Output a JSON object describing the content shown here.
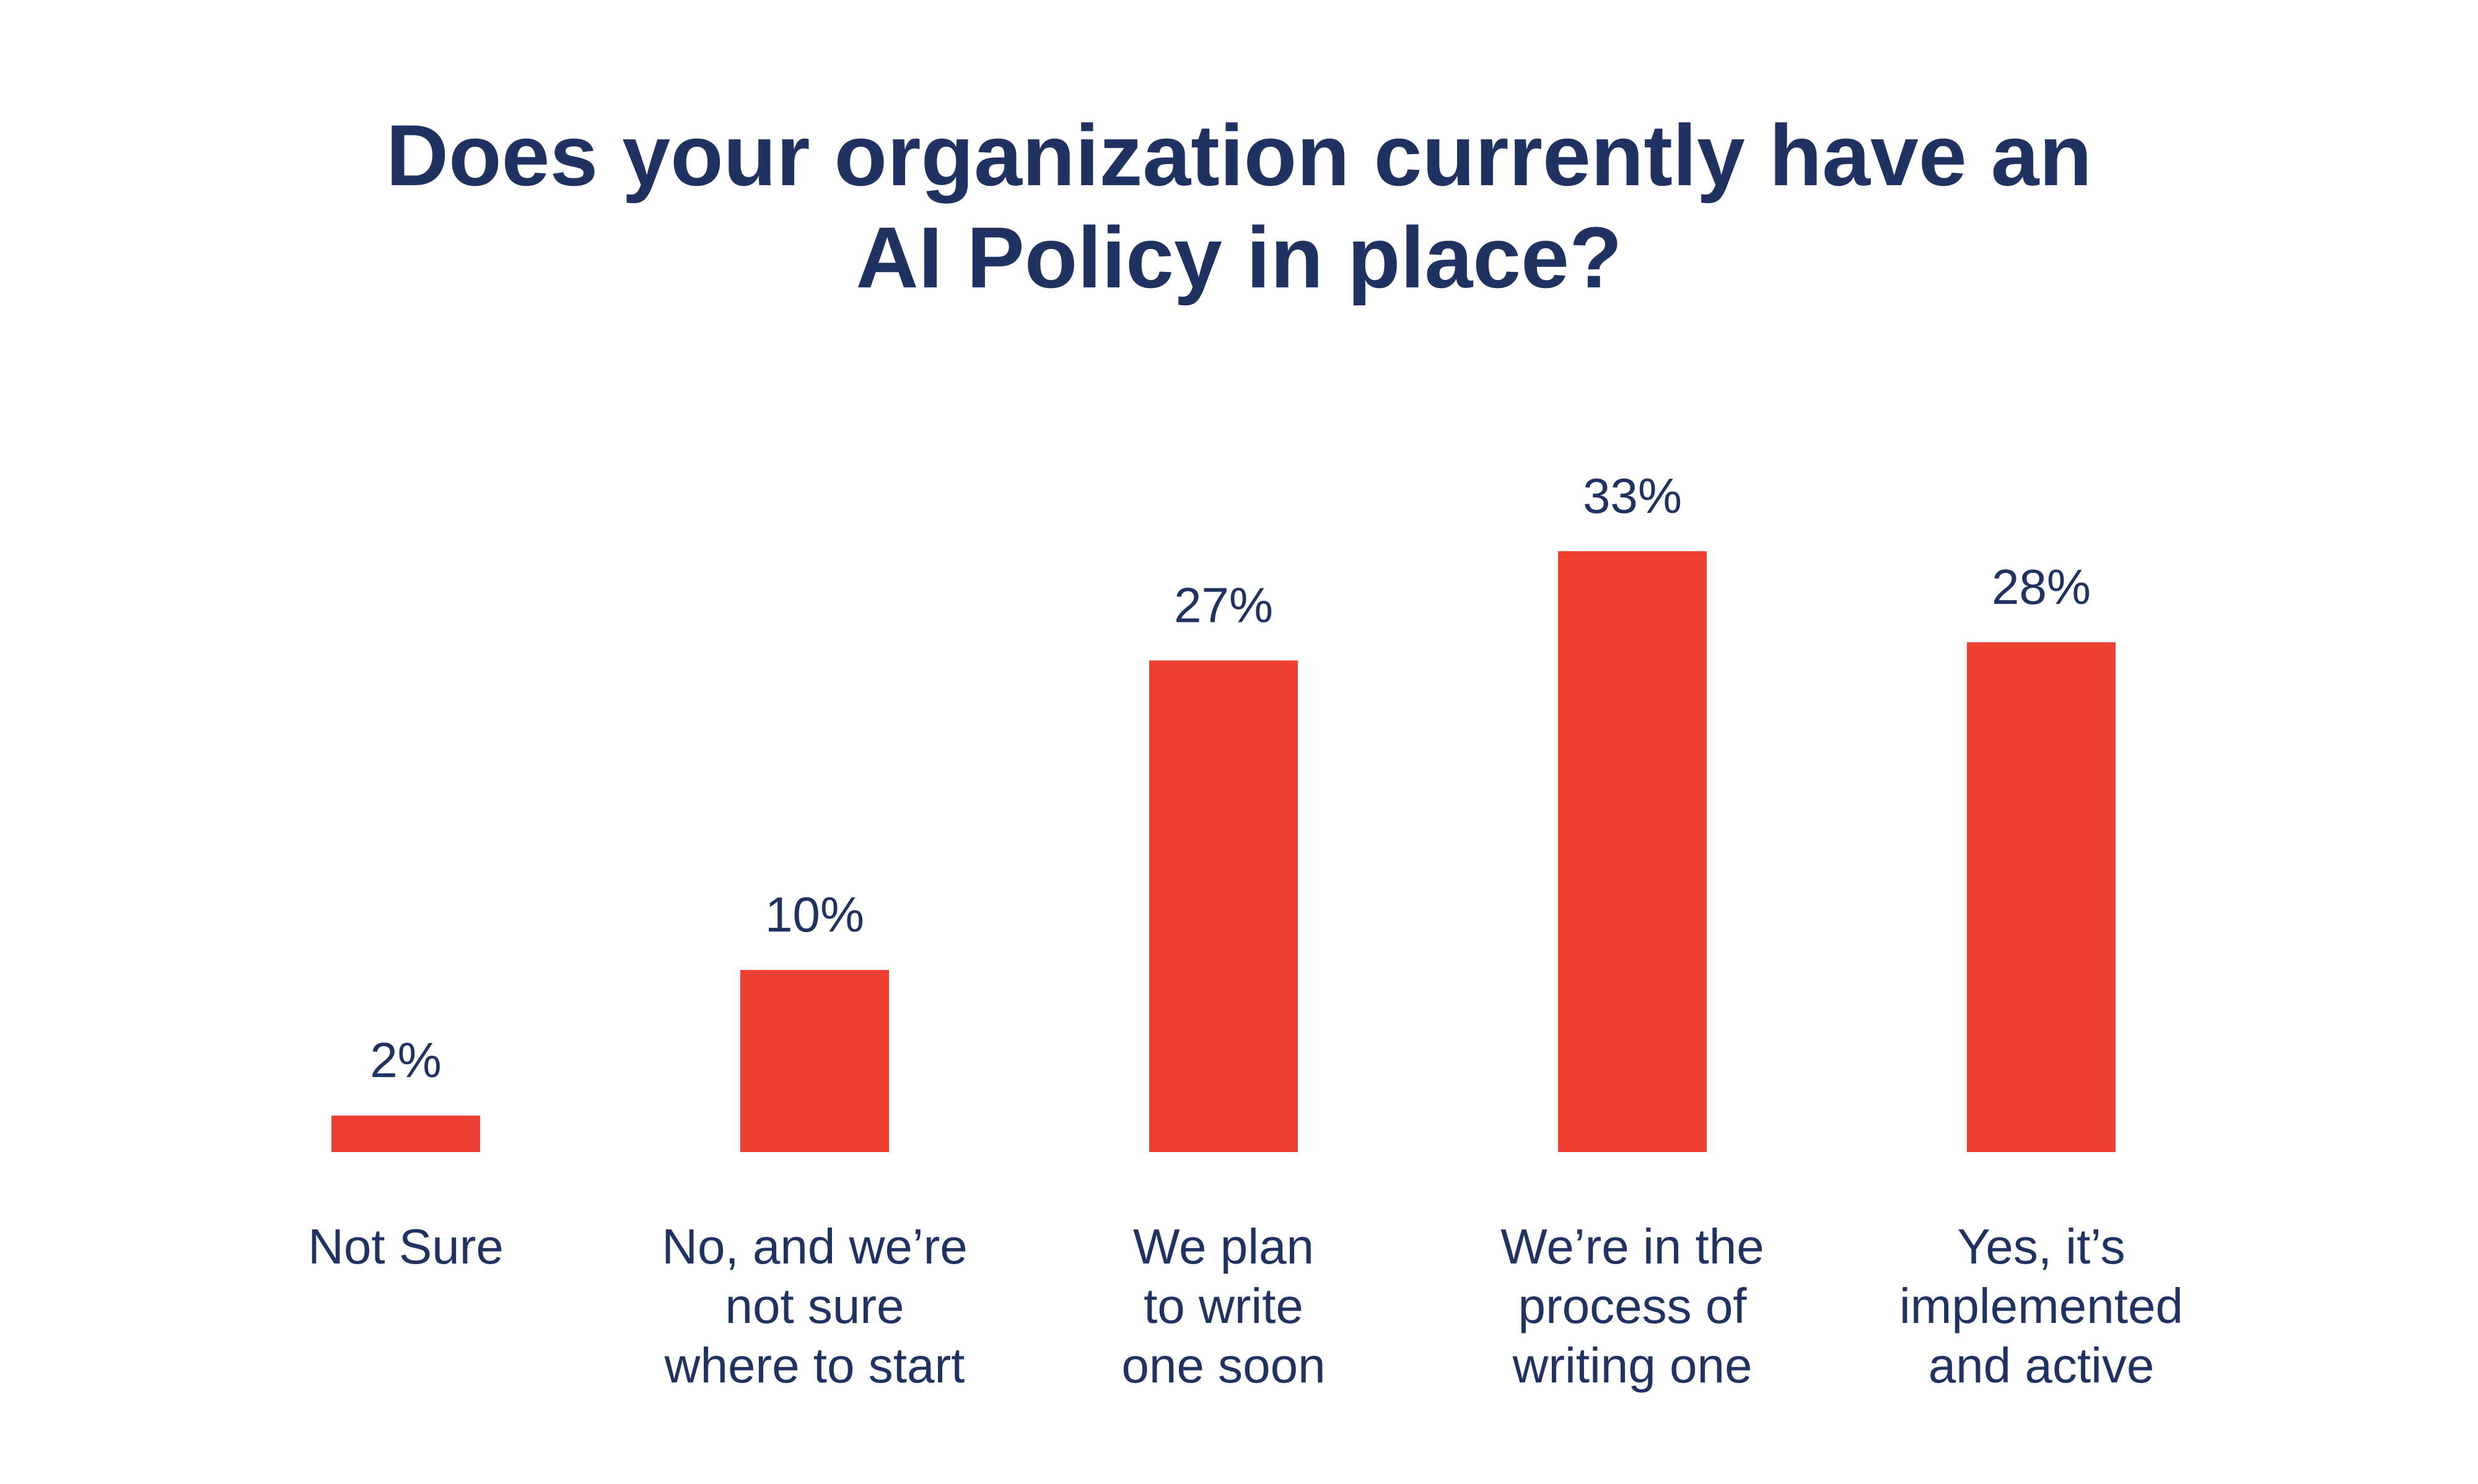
{
  "title": {
    "line1": "Does your organization currently have an",
    "line2": "AI Policy in place?"
  },
  "colors": {
    "bar": "#ef3e32",
    "text": "#1f3261",
    "background": "#ffffff"
  },
  "chart_data": {
    "type": "bar",
    "title": "Does your organization currently have an AI Policy in place?",
    "xlabel": "",
    "ylabel": "",
    "ylim": [
      0,
      33
    ],
    "grid": false,
    "legend": "none",
    "categories": [
      [
        "Not Sure"
      ],
      [
        "No, and we’re",
        "not sure",
        "where to start"
      ],
      [
        "We plan",
        "to write",
        "one soon"
      ],
      [
        "We’re in the",
        "process of",
        "writing one"
      ],
      [
        "Yes, it’s",
        "implemented",
        "and active"
      ]
    ],
    "values": [
      2,
      10,
      27,
      33,
      28
    ],
    "value_labels": [
      "2%",
      "10%",
      "27%",
      "33%",
      "28%"
    ]
  }
}
